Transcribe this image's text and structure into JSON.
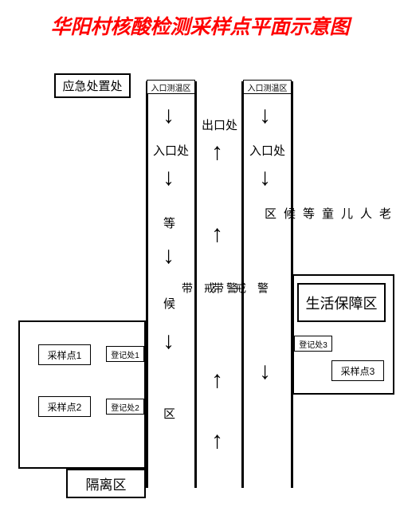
{
  "title": {
    "text": "华阳村核酸检测采样点平面示意图",
    "color": "#ff0000",
    "fontsize": 25
  },
  "boxes": {
    "emergency": "应急处置处",
    "temp1": "入口测温区",
    "temp2": "入口测温区",
    "life_support": "生活保障区",
    "sample1": "采样点1",
    "sample2": "采样点2",
    "sample3": "采样点3",
    "reg1": "登记处1",
    "reg2": "登记处2",
    "reg3": "登记处3",
    "isolation": "隔离区"
  },
  "lanes": {
    "entrance": "入口处",
    "exit": "出口处",
    "waiting": "等",
    "waiting2": "候",
    "waiting3": "区",
    "cordon": "警\n\n戒\n\n带",
    "elderly_children": "老\n人\n儿\n童\n等\n候\n区"
  },
  "style": {
    "black": "#000000",
    "label_fontsize": 15,
    "small_fontsize": 12,
    "tiny_fontsize": 10
  }
}
